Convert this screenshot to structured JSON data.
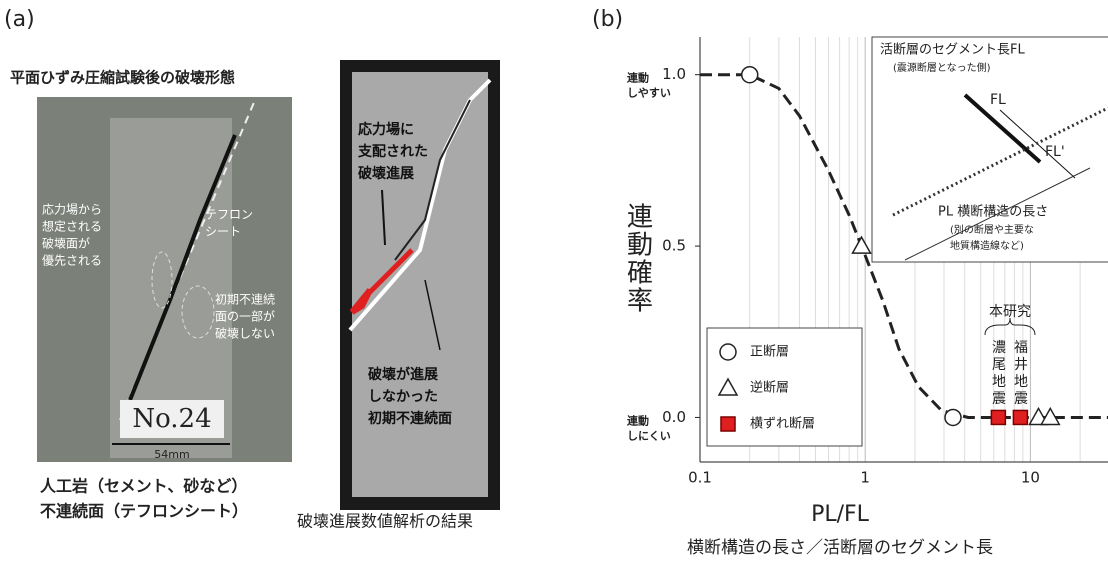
{
  "panel_a": {
    "label": "(a)",
    "title": "平面ひずみ圧縮試験後の破壊形態",
    "photo_left": {
      "notes": [
        {
          "lines": [
            "応力場から",
            "想定される",
            "破壊面が",
            "優先される"
          ]
        },
        {
          "lines": [
            "テフロン",
            "シート"
          ]
        },
        {
          "lines": [
            "初期不連続",
            "面の一部が",
            "破壊しない"
          ]
        }
      ],
      "specimen": "No.24",
      "scale": "54mm",
      "caption": [
        "人工岩（セメント、砂など）",
        "不連続面（テフロンシート）"
      ]
    },
    "photo_right": {
      "notes": [
        {
          "lines": [
            "応力場に",
            "支配された",
            "破壊進展"
          ]
        },
        {
          "lines": [
            "破壊が進展",
            "しなかった",
            "初期不連続面"
          ]
        }
      ],
      "caption": "破壊進展数値解析の結果"
    }
  },
  "chart_data": {
    "type": "scatter",
    "label": "(b)",
    "xlabel": "PL/FL",
    "subtitle": "横断構造の長さ／活断層のセグメント長",
    "ylabel": "連動確率",
    "xscale": "log",
    "xlim": [
      0.1,
      29.5
    ],
    "xticks": [
      0.1,
      1,
      10
    ],
    "xgrid_minor": [
      0.2,
      0.3,
      0.4,
      0.5,
      0.6,
      0.7,
      0.8,
      0.9,
      2,
      3,
      4,
      5,
      6,
      7,
      8,
      9,
      20
    ],
    "ylim": [
      -0.13,
      1.11
    ],
    "yticks": [
      {
        "value": 0,
        "label": "0.0"
      },
      {
        "value": 0.5,
        "label": "0.5"
      },
      {
        "value": 1,
        "label": "1.0"
      }
    ],
    "grid": true,
    "legend": "lower left",
    "ytext": [
      {
        "value": 1,
        "lines": [
          "連動",
          "しやすい"
        ]
      },
      {
        "value": 0,
        "lines": [
          "連動",
          "しにくい"
        ]
      }
    ],
    "curve": {
      "style": "dashed",
      "color": "#222222",
      "x": [
        0.1,
        0.2,
        0.3,
        0.4,
        0.6,
        0.8,
        0.95,
        1.28,
        1.6,
        2.1,
        2.9,
        4.2,
        29.5
      ],
      "y": [
        1,
        1,
        0.96,
        0.88,
        0.72,
        0.59,
        0.5,
        0.34,
        0.2,
        0.09,
        0.02,
        0,
        0
      ]
    },
    "series": [
      {
        "name": "正断層",
        "marker": "circle",
        "color": "#ffffff",
        "x": [
          0.2,
          3.4
        ],
        "y": [
          1,
          0
        ]
      },
      {
        "name": "逆断層",
        "marker": "triangle",
        "color": "#ffffff",
        "x": [
          0.95,
          11.2,
          13.2
        ],
        "y": [
          0.5,
          0,
          0
        ]
      },
      {
        "name": "横ずれ断層",
        "marker": "square",
        "color": "#e02020",
        "x": [
          6.4,
          8.7
        ],
        "y": [
          0,
          0
        ]
      }
    ],
    "annotations": {
      "study": "本研究",
      "events": [
        "濃尾地震",
        "福井地震"
      ]
    },
    "inset": {
      "title": "活断層のセグメント長FL",
      "note": "(震源断層となった側)",
      "fl": "FL",
      "fl2": "FL'",
      "pl": "PL 横断構造の長さ",
      "pl_note": [
        "(別の断層や主要な",
        "地質構造線など)"
      ]
    }
  }
}
